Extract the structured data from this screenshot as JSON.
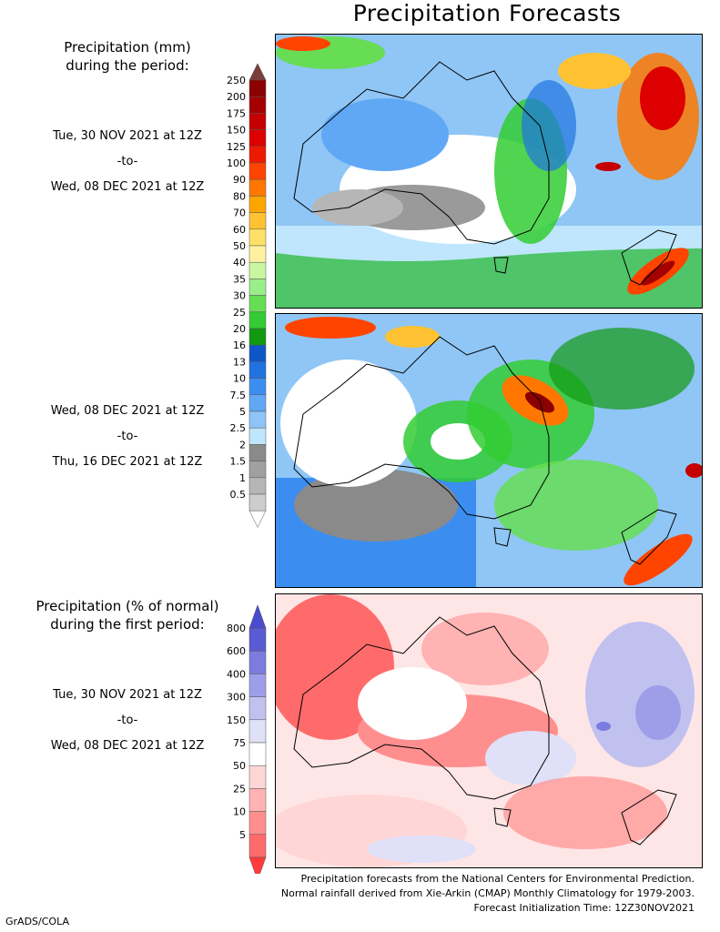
{
  "title": "Precipitation Forecasts",
  "section1": {
    "title_line1": "Precipitation (mm)",
    "title_line2": "during the period:"
  },
  "period1": {
    "start": "Tue, 30 NOV 2021 at 12Z",
    "sep": "-to-",
    "end": "Wed, 08 DEC 2021 at 12Z"
  },
  "period2": {
    "start": "Wed, 08 DEC 2021 at 12Z",
    "sep": "-to-",
    "end": "Thu, 16 DEC 2021 at 12Z"
  },
  "section2": {
    "title_line1": "Precipitation (% of normal)",
    "title_line2": "during the first period:"
  },
  "period3": {
    "start": "Tue, 30 NOV 2021 at 12Z",
    "sep": "-to-",
    "end": "Wed, 08 DEC 2021 at 12Z"
  },
  "mm_scale": {
    "levels": [
      "250",
      "200",
      "175",
      "150",
      "125",
      "100",
      "90",
      "80",
      "70",
      "60",
      "50",
      "40",
      "35",
      "30",
      "25",
      "20",
      "16",
      "13",
      "10",
      "7.5",
      "5",
      "2.5",
      "2",
      "1.5",
      "1",
      "0.5"
    ],
    "colors": [
      "#8b0000",
      "#a50000",
      "#c40000",
      "#dc0000",
      "#ee1a00",
      "#ff4400",
      "#ff7700",
      "#ffa500",
      "#ffc233",
      "#ffe066",
      "#fff1a0",
      "#c8f7a0",
      "#9aee8a",
      "#66dd55",
      "#33cc33",
      "#119911",
      "#0e55c8",
      "#1f73e0",
      "#3b8ef0",
      "#60a8f5",
      "#8ec4f8",
      "#bfe6fc",
      "#8a8a8a",
      "#a0a0a0",
      "#b6b6b6",
      "#cdcdcd"
    ],
    "top_cap": "#7a3f3a",
    "bottom_cap": "#ffffff"
  },
  "pct_scale": {
    "levels": [
      "800",
      "600",
      "400",
      "300",
      "150",
      "75",
      "50",
      "25",
      "10",
      "5"
    ],
    "colors": [
      "#5a5ad2",
      "#7b7be0",
      "#9e9ee8",
      "#c1c1f0",
      "#e0e0f8",
      "#ffffff",
      "#ffd6d6",
      "#ffb3b3",
      "#ff8f8f",
      "#ff6b6b"
    ],
    "top_cap": "#4b4bd0",
    "bottom_cap": "#ff3b3b"
  },
  "credits": {
    "line1": "Precipitation forecasts from the National Centers for Environmental Prediction.",
    "line2": "Normal rainfall derived from Xie-Arkin (CMAP) Monthly Climatology for 1979-2003.",
    "line3": "Forecast Initialization Time: 12Z30NOV2021"
  },
  "software": "GrADS/COLA"
}
